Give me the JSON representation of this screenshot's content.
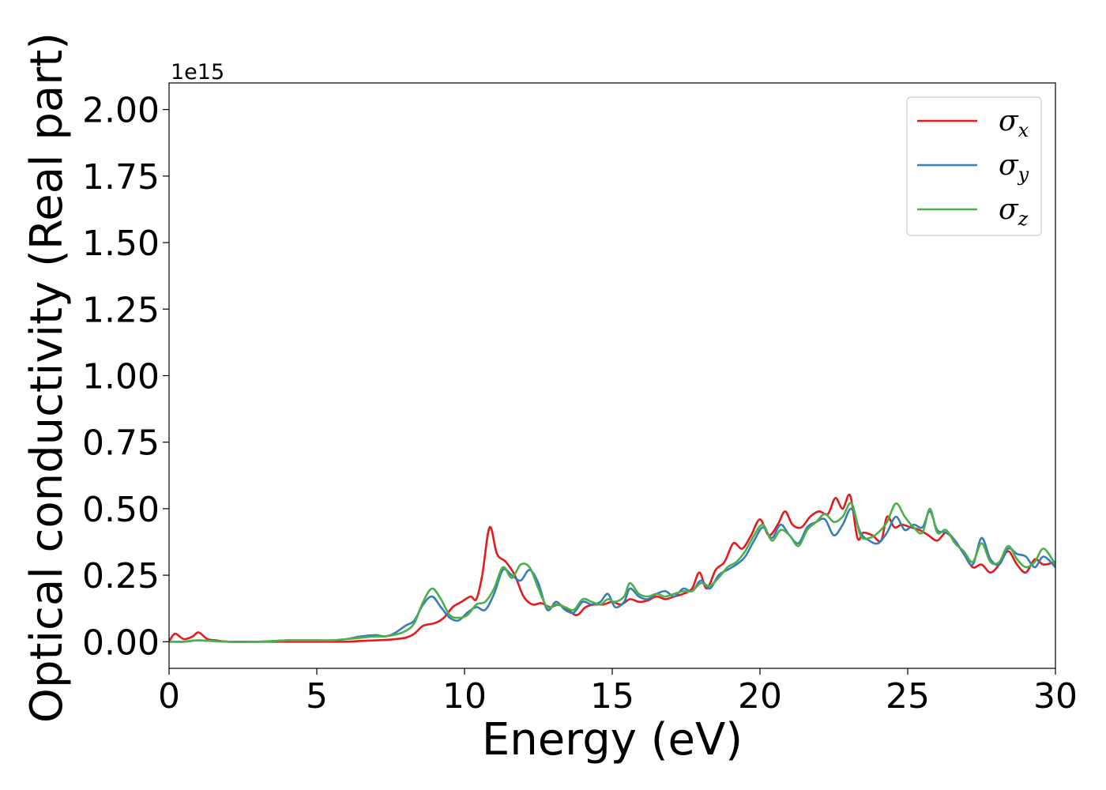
{
  "chart_data": {
    "type": "line",
    "title": "",
    "xlabel": "Energy (eV)",
    "ylabel": "Optical conductivity (Real part)",
    "y_offset_text": "1e15",
    "xlim": [
      0,
      30
    ],
    "ylim": [
      -0.1,
      2.1
    ],
    "xticks": [
      0,
      5,
      10,
      15,
      20,
      25,
      30
    ],
    "xtick_labels": [
      "0",
      "5",
      "10",
      "15",
      "20",
      "25",
      "30"
    ],
    "yticks": [
      0.0,
      0.25,
      0.5,
      0.75,
      1.0,
      1.25,
      1.5,
      1.75,
      2.0
    ],
    "ytick_labels": [
      "0.00",
      "0.25",
      "0.50",
      "0.75",
      "1.00",
      "1.25",
      "1.50",
      "1.75",
      "2.00"
    ],
    "grid": false,
    "legend_position": "top-right",
    "series": [
      {
        "name": "σx",
        "legend_base": "σ",
        "legend_sub": "x",
        "color": "#e41a1c",
        "x": [
          0,
          0.2,
          0.5,
          0.8,
          1.0,
          1.3,
          1.6,
          2,
          3,
          4,
          5,
          6,
          6.5,
          7,
          7.5,
          8,
          8.3,
          8.6,
          9,
          9.3,
          9.6,
          9.9,
          10.2,
          10.4,
          10.6,
          10.85,
          11.1,
          11.4,
          11.7,
          12,
          12.3,
          12.6,
          12.9,
          13.2,
          13.5,
          13.8,
          14.1,
          14.4,
          14.7,
          15,
          15.3,
          15.6,
          15.9,
          16.2,
          16.5,
          16.8,
          17.1,
          17.4,
          17.7,
          17.95,
          18.2,
          18.5,
          18.8,
          19.1,
          19.4,
          19.7,
          20,
          20.3,
          20.6,
          20.85,
          21.1,
          21.4,
          21.7,
          22,
          22.3,
          22.55,
          22.8,
          23.05,
          23.3,
          23.5,
          23.8,
          24.1,
          24.3,
          24.55,
          24.8,
          25.1,
          25.4,
          25.7,
          26,
          26.3,
          26.6,
          26.9,
          27.2,
          27.5,
          27.8,
          28.1,
          28.4,
          28.7,
          29,
          29.3,
          29.6,
          30
        ],
        "y": [
          0.0,
          0.03,
          0.01,
          0.02,
          0.035,
          0.01,
          0.005,
          0.0,
          0.0,
          0.0,
          0.0,
          0.0,
          0.003,
          0.005,
          0.008,
          0.015,
          0.03,
          0.06,
          0.07,
          0.09,
          0.13,
          0.15,
          0.17,
          0.16,
          0.25,
          0.43,
          0.33,
          0.3,
          0.25,
          0.17,
          0.14,
          0.145,
          0.13,
          0.14,
          0.12,
          0.1,
          0.13,
          0.14,
          0.14,
          0.15,
          0.14,
          0.16,
          0.15,
          0.155,
          0.17,
          0.16,
          0.17,
          0.18,
          0.2,
          0.26,
          0.2,
          0.27,
          0.3,
          0.37,
          0.35,
          0.4,
          0.46,
          0.4,
          0.44,
          0.49,
          0.44,
          0.43,
          0.47,
          0.49,
          0.48,
          0.54,
          0.5,
          0.55,
          0.39,
          0.41,
          0.4,
          0.38,
          0.47,
          0.43,
          0.44,
          0.43,
          0.42,
          0.4,
          0.38,
          0.41,
          0.38,
          0.33,
          0.28,
          0.29,
          0.26,
          0.29,
          0.34,
          0.29,
          0.26,
          0.31,
          0.29,
          0.3
        ]
      },
      {
        "name": "σy",
        "legend_base": "σ",
        "legend_sub": "y",
        "color": "#377eb8",
        "x": [
          0,
          0.5,
          1,
          2,
          3,
          4,
          4.5,
          5,
          5.5,
          6,
          6.5,
          7,
          7.3,
          7.6,
          8,
          8.3,
          8.6,
          8.9,
          9.2,
          9.5,
          9.8,
          10.1,
          10.4,
          10.7,
          11,
          11.3,
          11.6,
          11.9,
          12.2,
          12.5,
          12.8,
          13.1,
          13.4,
          13.7,
          14,
          14.3,
          14.6,
          14.85,
          15.1,
          15.4,
          15.6,
          15.9,
          16.2,
          16.5,
          16.8,
          17.1,
          17.4,
          17.7,
          18,
          18.3,
          18.6,
          18.9,
          19.2,
          19.5,
          19.8,
          20.1,
          20.4,
          20.7,
          21,
          21.3,
          21.6,
          21.9,
          22.2,
          22.5,
          22.8,
          23.1,
          23.4,
          23.7,
          24,
          24.3,
          24.6,
          24.9,
          25.2,
          25.5,
          25.75,
          26,
          26.3,
          26.6,
          26.9,
          27.2,
          27.5,
          27.8,
          28.1,
          28.4,
          28.7,
          29,
          29.3,
          29.6,
          30
        ],
        "y": [
          0.0,
          0.0,
          0.005,
          0.0,
          0.0,
          0.005,
          0.005,
          0.005,
          0.005,
          0.01,
          0.02,
          0.025,
          0.02,
          0.03,
          0.06,
          0.08,
          0.14,
          0.17,
          0.13,
          0.09,
          0.08,
          0.11,
          0.13,
          0.12,
          0.18,
          0.27,
          0.25,
          0.23,
          0.27,
          0.22,
          0.12,
          0.15,
          0.12,
          0.11,
          0.15,
          0.14,
          0.15,
          0.18,
          0.13,
          0.15,
          0.2,
          0.17,
          0.16,
          0.18,
          0.19,
          0.17,
          0.2,
          0.19,
          0.23,
          0.2,
          0.25,
          0.27,
          0.29,
          0.32,
          0.38,
          0.43,
          0.39,
          0.44,
          0.4,
          0.37,
          0.43,
          0.45,
          0.46,
          0.4,
          0.44,
          0.5,
          0.41,
          0.38,
          0.37,
          0.41,
          0.47,
          0.42,
          0.44,
          0.43,
          0.49,
          0.42,
          0.41,
          0.38,
          0.33,
          0.29,
          0.39,
          0.31,
          0.29,
          0.35,
          0.33,
          0.32,
          0.28,
          0.32,
          0.28
        ]
      },
      {
        "name": "σz",
        "legend_base": "σ",
        "legend_sub": "z",
        "color": "#4daf4a",
        "x": [
          0,
          0.5,
          1,
          2,
          3,
          4,
          4.5,
          5,
          5.5,
          6,
          6.5,
          7,
          7.3,
          7.6,
          8,
          8.3,
          8.6,
          8.9,
          9.2,
          9.5,
          9.8,
          10.1,
          10.4,
          10.7,
          11,
          11.3,
          11.6,
          11.9,
          12.2,
          12.5,
          12.8,
          13.1,
          13.4,
          13.7,
          14,
          14.3,
          14.6,
          14.85,
          15.1,
          15.4,
          15.6,
          15.9,
          16.2,
          16.5,
          16.8,
          17.1,
          17.4,
          17.7,
          18,
          18.3,
          18.6,
          18.9,
          19.2,
          19.5,
          19.8,
          20.1,
          20.4,
          20.7,
          21,
          21.3,
          21.6,
          21.9,
          22.2,
          22.5,
          22.8,
          23.1,
          23.4,
          23.7,
          24,
          24.3,
          24.6,
          24.9,
          25.2,
          25.5,
          25.75,
          26,
          26.3,
          26.6,
          26.9,
          27.2,
          27.5,
          27.8,
          28.1,
          28.4,
          28.7,
          29,
          29.3,
          29.6,
          30
        ],
        "y": [
          0.0,
          0.0,
          0.005,
          0.0,
          0.0,
          0.005,
          0.005,
          0.005,
          0.005,
          0.01,
          0.015,
          0.02,
          0.02,
          0.025,
          0.04,
          0.07,
          0.15,
          0.2,
          0.16,
          0.1,
          0.09,
          0.1,
          0.14,
          0.15,
          0.2,
          0.28,
          0.24,
          0.29,
          0.28,
          0.2,
          0.13,
          0.14,
          0.13,
          0.12,
          0.16,
          0.15,
          0.14,
          0.16,
          0.15,
          0.17,
          0.22,
          0.18,
          0.17,
          0.18,
          0.17,
          0.18,
          0.19,
          0.19,
          0.22,
          0.21,
          0.24,
          0.28,
          0.3,
          0.34,
          0.4,
          0.44,
          0.38,
          0.42,
          0.4,
          0.36,
          0.42,
          0.45,
          0.48,
          0.45,
          0.47,
          0.52,
          0.4,
          0.39,
          0.41,
          0.45,
          0.52,
          0.47,
          0.43,
          0.41,
          0.5,
          0.41,
          0.42,
          0.37,
          0.34,
          0.3,
          0.37,
          0.3,
          0.3,
          0.36,
          0.31,
          0.28,
          0.3,
          0.35,
          0.29
        ]
      }
    ]
  }
}
